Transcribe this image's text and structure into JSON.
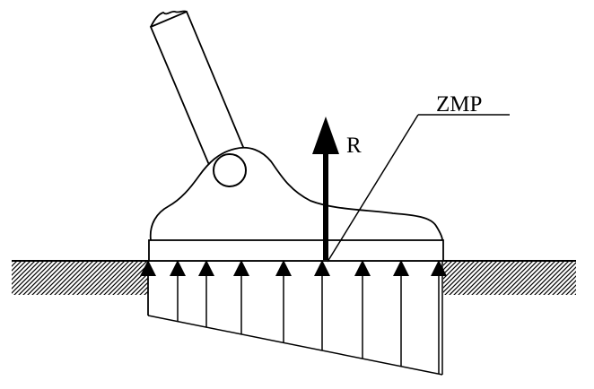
{
  "labels": {
    "zmp": "ZMP",
    "reaction_force": "R"
  },
  "colors": {
    "ink": "#000000",
    "background": "#ffffff"
  },
  "pressure_arrow_count": 9
}
